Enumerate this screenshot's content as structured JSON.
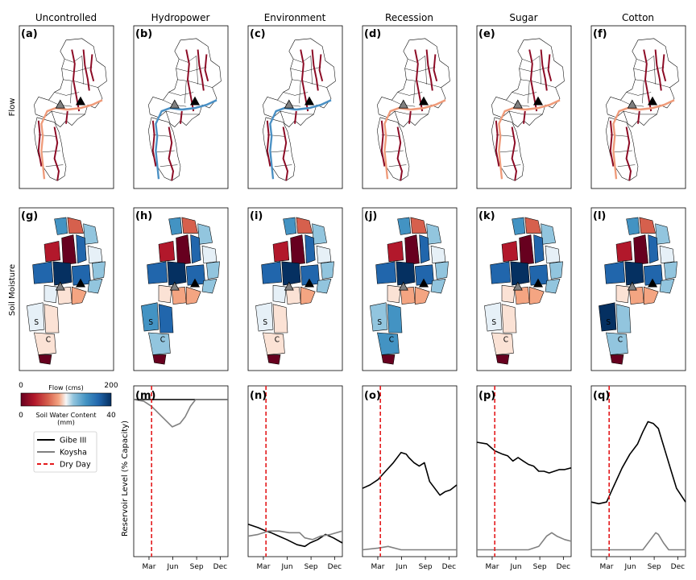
{
  "columns": [
    "Uncontrolled",
    "Hydropower",
    "Environment",
    "Recession",
    "Sugar",
    "Cotton"
  ],
  "row_labels": [
    "Flow",
    "Soil Moisture"
  ],
  "panel_labels": {
    "flow": [
      "(a)",
      "(b)",
      "(c)",
      "(d)",
      "(e)",
      "(f)"
    ],
    "soil": [
      "(g)",
      "(h)",
      "(i)",
      "(j)",
      "(k)",
      "(l)"
    ],
    "reservoir": [
      "(m)",
      "(n)",
      "(o)",
      "(p)",
      "(q)"
    ]
  },
  "map_markers": [
    "S",
    "C"
  ],
  "colorbar": {
    "flow_label": "Flow (cms)",
    "flow_min": "0",
    "flow_max": "200",
    "soil_label_line1": "Soil Water Content",
    "soil_label_line2": "(mm)",
    "soil_min": "0",
    "soil_max": "40",
    "colormap": "RdBu"
  },
  "colors": {
    "gibe": "#000000",
    "koysha": "#808080",
    "dry_day": "#e41a1c",
    "map_dark_red": "#8c0b25",
    "map_salmon": "#ef9b7a",
    "map_blue": "#4a90c4"
  },
  "chart_data": {
    "type": "line",
    "ylabel": "Reservoir Level (% Capacity)",
    "xlabel": "",
    "x_ticks": [
      "Mar",
      "Jun",
      "Sep",
      "Dec"
    ],
    "x_tick_days": [
      60,
      152,
      244,
      335
    ],
    "x_range": [
      1,
      365
    ],
    "ylim": [
      0,
      100
    ],
    "legend": [
      "Gibe III",
      "Koysha",
      "Dry Day"
    ],
    "legend_placement": "left, beside bottom row",
    "panels": [
      {
        "label": "(m)",
        "scenario": "Hydropower",
        "dry_day": 70,
        "series": [
          {
            "name": "Gibe III",
            "x": [
              1,
              365
            ],
            "y": [
              92,
              92
            ]
          },
          {
            "name": "Koysha",
            "x": [
              1,
              40,
              70,
              110,
              150,
              180,
              200,
              220,
              240,
              260,
              365
            ],
            "y": [
              92,
              91,
              88,
              82,
              76,
              78,
              82,
              88,
              92,
              92,
              92
            ]
          }
        ]
      },
      {
        "label": "(n)",
        "scenario": "Environment",
        "dry_day": 70,
        "series": [
          {
            "name": "Gibe III",
            "x": [
              1,
              40,
              70,
              90,
              120,
              150,
              190,
              220,
              240,
              270,
              300,
              330,
              365
            ],
            "y": [
              19,
              17,
              15,
              14,
              12,
              10,
              7,
              6,
              8,
              10,
              13,
              11,
              8
            ]
          },
          {
            "name": "Koysha",
            "x": [
              1,
              40,
              80,
              120,
              160,
              200,
              220,
              250,
              280,
              320,
              365
            ],
            "y": [
              12,
              13,
              15,
              15,
              14,
              14,
              11,
              10,
              12,
              13,
              15
            ]
          }
        ]
      },
      {
        "label": "(o)",
        "scenario": "Recession",
        "dry_day": 70,
        "series": [
          {
            "name": "Gibe III",
            "x": [
              1,
              30,
              60,
              90,
              120,
              150,
              170,
              180,
              200,
              220,
              240,
              260,
              280,
              300,
              320,
              340,
              365
            ],
            "y": [
              40,
              42,
              45,
              50,
              55,
              61,
              60,
              58,
              55,
              53,
              55,
              44,
              40,
              36,
              38,
              39,
              42
            ]
          },
          {
            "name": "Koysha",
            "x": [
              1,
              60,
              100,
              150,
              200,
              250,
              300,
              365
            ],
            "y": [
              4,
              5,
              6,
              4,
              4,
              4,
              4,
              4
            ]
          }
        ]
      },
      {
        "label": "(p)",
        "scenario": "Sugar",
        "dry_day": 70,
        "series": [
          {
            "name": "Gibe III",
            "x": [
              1,
              40,
              70,
              100,
              120,
              140,
              160,
              180,
              200,
              220,
              240,
              260,
              280,
              300,
              320,
              340,
              365
            ],
            "y": [
              67,
              66,
              62,
              60,
              59,
              56,
              58,
              56,
              54,
              53,
              50,
              50,
              49,
              50,
              51,
              51,
              52
            ]
          },
          {
            "name": "Koysha",
            "x": [
              1,
              150,
              200,
              240,
              270,
              290,
              310,
              340,
              365
            ],
            "y": [
              4,
              4,
              4,
              6,
              12,
              14,
              12,
              10,
              9
            ]
          }
        ]
      },
      {
        "label": "(q)",
        "scenario": "Cotton",
        "dry_day": 70,
        "series": [
          {
            "name": "Gibe III",
            "x": [
              1,
              30,
              60,
              90,
              120,
              150,
              180,
              200,
              220,
              240,
              260,
              270,
              290,
              310,
              330,
              365
            ],
            "y": [
              32,
              31,
              32,
              42,
              52,
              60,
              66,
              73,
              79,
              78,
              75,
              70,
              60,
              50,
              40,
              32
            ]
          },
          {
            "name": "Koysha",
            "x": [
              1,
              150,
              200,
              230,
              250,
              260,
              280,
              300,
              365
            ],
            "y": [
              4,
              4,
              4,
              10,
              14,
              13,
              8,
              4,
              4
            ]
          }
        ]
      }
    ]
  }
}
